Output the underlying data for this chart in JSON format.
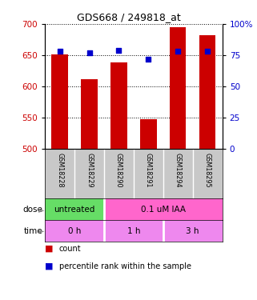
{
  "title": "GDS668 / 249818_at",
  "samples": [
    "GSM18228",
    "GSM18229",
    "GSM18290",
    "GSM18291",
    "GSM18294",
    "GSM18295"
  ],
  "bar_values": [
    651,
    612,
    638,
    548,
    695,
    682
  ],
  "percentile_values": [
    78,
    77,
    79,
    72,
    78,
    78
  ],
  "bar_color": "#cc0000",
  "dot_color": "#0000cc",
  "ylim_left": [
    500,
    700
  ],
  "ylim_right": [
    0,
    100
  ],
  "yticks_left": [
    500,
    550,
    600,
    650,
    700
  ],
  "yticks_right": [
    0,
    25,
    50,
    75,
    100
  ],
  "ytick_labels_right": [
    "0",
    "25",
    "50",
    "75",
    "100%"
  ],
  "dose_labels": [
    {
      "text": "untreated",
      "start": 0,
      "end": 2,
      "color": "#66dd66"
    },
    {
      "text": "0.1 uM IAA",
      "start": 2,
      "end": 6,
      "color": "#ff66cc"
    }
  ],
  "time_labels": [
    {
      "text": "0 h",
      "start": 0,
      "end": 2,
      "color": "#ee88ee"
    },
    {
      "text": "1 h",
      "start": 2,
      "end": 4,
      "color": "#ee88ee"
    },
    {
      "text": "3 h",
      "start": 4,
      "end": 6,
      "color": "#ee88ee"
    }
  ],
  "legend_count_label": "count",
  "legend_pct_label": "percentile rank within the sample",
  "sample_area_color": "#c8c8c8",
  "background_color": "#ffffff"
}
